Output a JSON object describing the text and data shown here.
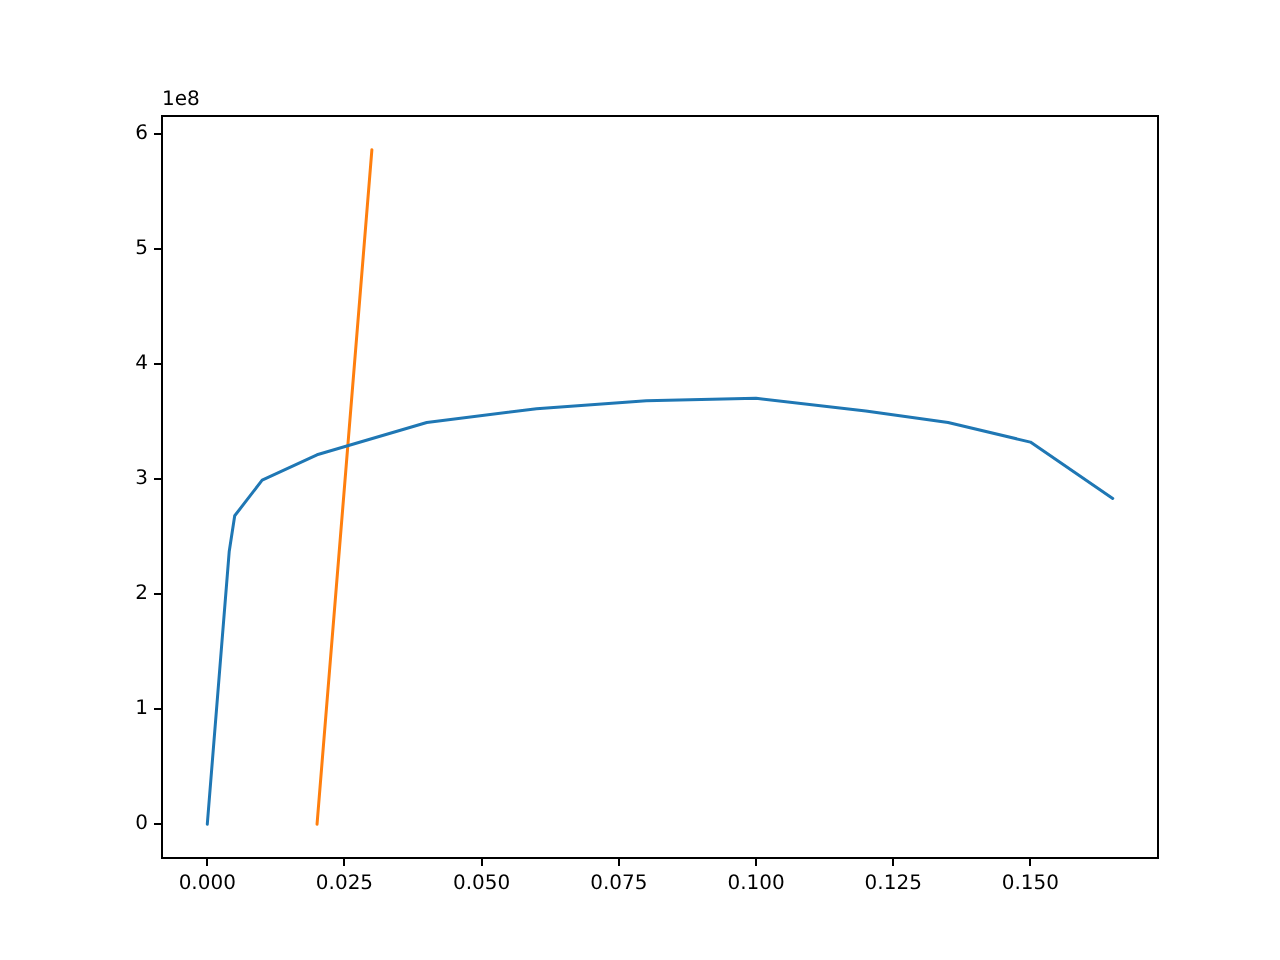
{
  "chart_data": {
    "type": "line",
    "series": [
      {
        "color": "#1f77b4",
        "x": [
          0,
          0.004,
          0.005,
          0.01,
          0.02,
          0.04,
          0.06,
          0.08,
          0.1,
          0.12,
          0.135,
          0.15,
          0.165
        ],
        "values": [
          0,
          2.37,
          2.68,
          2.99,
          3.21,
          3.49,
          3.61,
          3.68,
          3.7,
          3.59,
          3.49,
          3.32,
          2.83
        ]
      },
      {
        "color": "#ff7f0e",
        "x": [
          0.02,
          0.03
        ],
        "values": [
          0,
          5.86
        ]
      }
    ],
    "xlim": [
      -0.00825,
      0.17325
    ],
    "xticks": [
      {
        "value": 0,
        "label": "0.000"
      },
      {
        "value": 0.025,
        "label": "0.025"
      },
      {
        "value": 0.05,
        "label": "0.050"
      },
      {
        "value": 0.075,
        "label": "0.075"
      },
      {
        "value": 0.1,
        "label": "0.100"
      },
      {
        "value": 0.125,
        "label": "0.125"
      },
      {
        "value": 0.15,
        "label": "0.150"
      }
    ],
    "ylim": [
      -0.293,
      6.153
    ],
    "yticks": [
      0,
      1,
      2,
      3,
      4,
      5,
      6
    ],
    "annotations": [
      "1e8"
    ],
    "grid": false,
    "line_style": "solid",
    "marker": "none"
  }
}
